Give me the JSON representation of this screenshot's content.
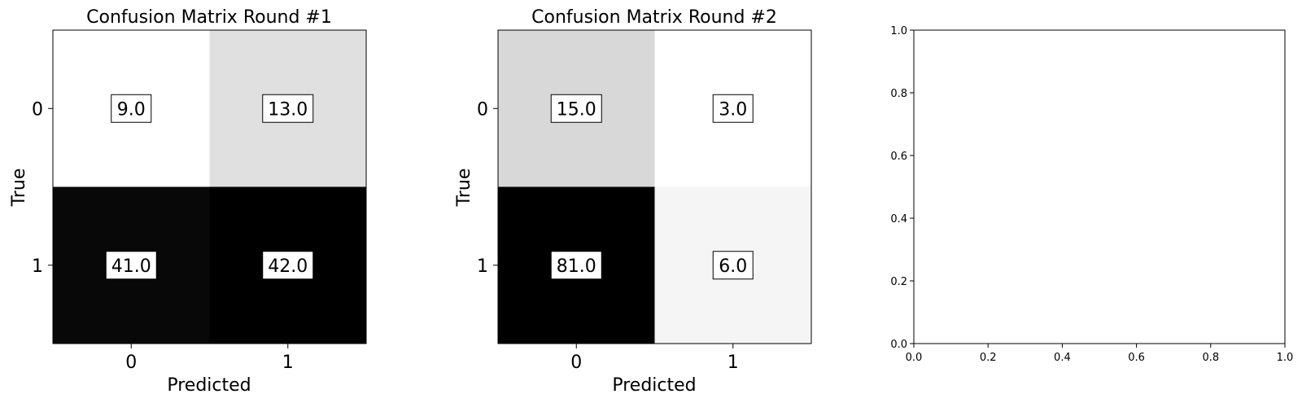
{
  "chart_data": [
    {
      "type": "heatmap",
      "title": "Confusion Matrix Round #1",
      "xlabel": "Predicted",
      "ylabel": "True",
      "x_categories": [
        "0",
        "1"
      ],
      "y_categories": [
        "0",
        "1"
      ],
      "values": [
        [
          9.0,
          13.0
        ],
        [
          41.0,
          42.0
        ]
      ],
      "value_labels": [
        [
          "9.0",
          "13.0"
        ],
        [
          "41.0",
          "42.0"
        ]
      ],
      "colormap": "grayscale-reversed"
    },
    {
      "type": "heatmap",
      "title": "Confusion Matrix Round #2",
      "xlabel": "Predicted",
      "ylabel": "True",
      "x_categories": [
        "0",
        "1"
      ],
      "y_categories": [
        "0",
        "1"
      ],
      "values": [
        [
          15.0,
          3.0
        ],
        [
          81.0,
          6.0
        ]
      ],
      "value_labels": [
        [
          "15.0",
          "3.0"
        ],
        [
          "81.0",
          "6.0"
        ]
      ],
      "colormap": "grayscale-reversed"
    },
    {
      "type": "scatter",
      "title": "",
      "xlabel": "",
      "ylabel": "",
      "xlim": [
        0.0,
        1.0
      ],
      "ylim": [
        0.0,
        1.0
      ],
      "x_ticks": [
        "0.0",
        "0.2",
        "0.4",
        "0.6",
        "0.8",
        "1.0"
      ],
      "y_ticks": [
        "0.0",
        "0.2",
        "0.4",
        "0.6",
        "0.8",
        "1.0"
      ],
      "series": []
    }
  ]
}
